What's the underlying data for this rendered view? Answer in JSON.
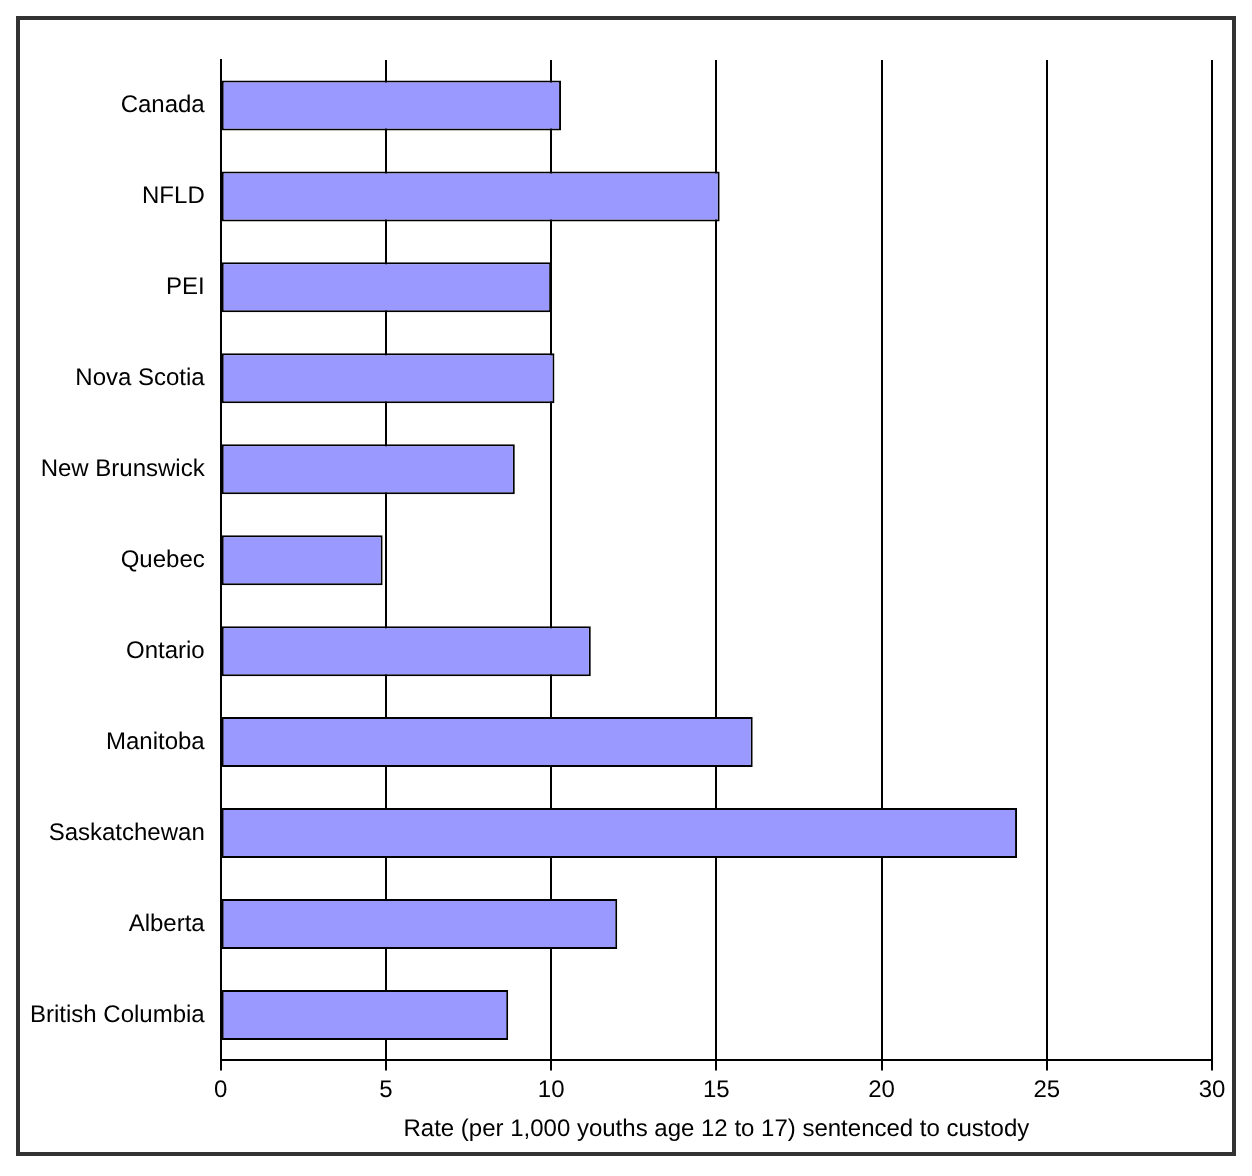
{
  "chart_data": {
    "type": "bar",
    "orientation": "horizontal",
    "xlabel": "Rate (per 1,000 youths age 12 to 17) sentenced to custody",
    "categories": [
      "Canada",
      "NFLD",
      "PEI",
      "Nova Scotia",
      "New Brunswick",
      "Quebec",
      "Ontario",
      "Manitoba",
      "Saskatchewan",
      "Alberta",
      "British Columbia"
    ],
    "values": [
      10.3,
      15.1,
      10.0,
      10.1,
      8.9,
      4.9,
      11.2,
      16.1,
      24.1,
      12.0,
      8.7
    ],
    "color": "#9999ff",
    "xlim": [
      0,
      30
    ],
    "xticks": [
      0,
      5,
      10,
      15,
      20,
      25,
      30
    ],
    "grid": "x",
    "legend": false
  }
}
